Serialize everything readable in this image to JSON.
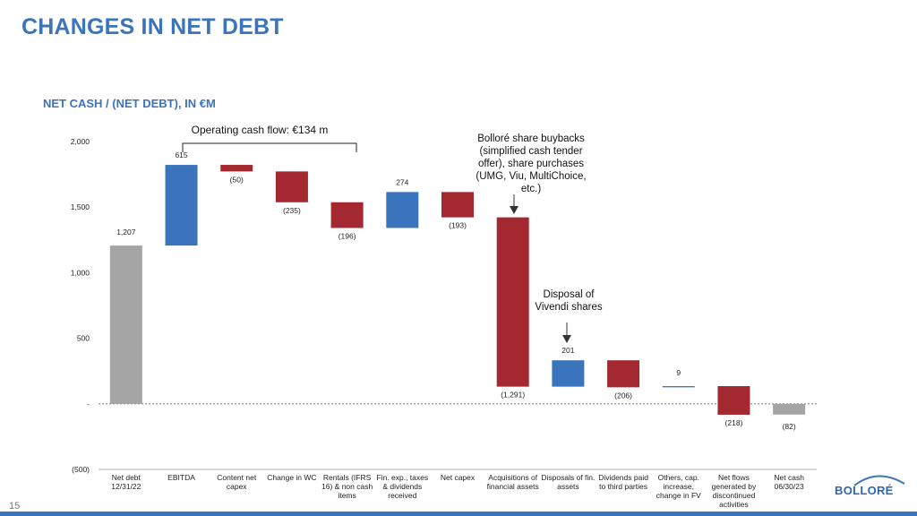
{
  "page": {
    "title": "CHANGES IN NET DEBT",
    "subtitle": "NET CASH / (NET DEBT), IN €M",
    "page_number": "15",
    "logo_text": "BOLLORÉ"
  },
  "annotations": {
    "operating_cash_flow": "Operating cash flow: €134 m",
    "buybacks": [
      "Bolloré share buybacks",
      "(simplified cash tender",
      "offer), share purchases",
      "(UMG, Viu, MultiChoice,",
      "etc.)"
    ],
    "vivendi": [
      "Disposal of",
      "Vivendi shares"
    ]
  },
  "colors": {
    "total": "#a5a5a5",
    "increase": "#3a74bd",
    "decrease": "#a3282f",
    "accent": "#3a74bd"
  },
  "chart_data": {
    "type": "bar",
    "subtype": "waterfall",
    "ylim": [
      -500,
      2000
    ],
    "yticks": [
      -500,
      0,
      500,
      1000,
      1500,
      2000
    ],
    "ytick_labels": [
      "(500)",
      "-",
      "500",
      "1,000",
      "1,500",
      "2,000"
    ],
    "categories": [
      [
        "Net debt",
        "12/31/22"
      ],
      [
        "EBITDA"
      ],
      [
        "Content net",
        "capex"
      ],
      [
        "Change in WC"
      ],
      [
        "Rentals (IFRS",
        "16) & non cash",
        "items"
      ],
      [
        "Fin. exp., taxes",
        "& dividends",
        "received"
      ],
      [
        "Net capex"
      ],
      [
        "Acquisitions of",
        "financial assets"
      ],
      [
        "Disposals of fin.",
        "assets"
      ],
      [
        "Dividends paid",
        "to third parties"
      ],
      [
        "Others, cap.",
        "increase,",
        "change in FV"
      ],
      [
        "Net flows",
        "generated by",
        "discontinued",
        "activities"
      ],
      [
        "Net cash",
        "06/30/23"
      ]
    ],
    "values": [
      1207,
      615,
      -50,
      -235,
      -196,
      274,
      -193,
      -1291,
      201,
      -206,
      9,
      -218,
      -82
    ],
    "kinds": [
      "total",
      "delta",
      "delta",
      "delta",
      "delta",
      "delta",
      "delta",
      "delta",
      "delta",
      "delta",
      "delta",
      "delta",
      "total"
    ],
    "value_labels": [
      "1,207",
      "615",
      "(50)",
      "(235)",
      "(196)",
      "274",
      "(193)",
      "(1,291)",
      "201",
      "(206)",
      "9",
      "(218)",
      "(82)"
    ],
    "grid": false,
    "legend": "none"
  }
}
